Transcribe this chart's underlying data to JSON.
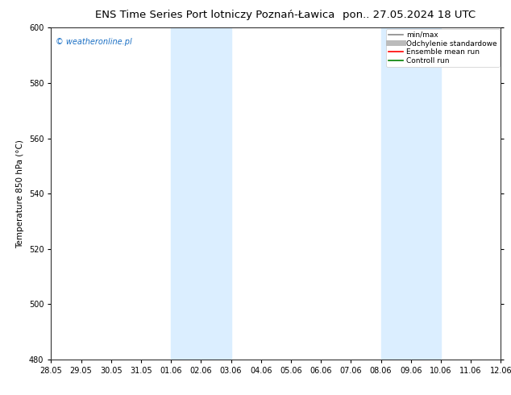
{
  "title_left": "ENS Time Series Port lotniczy Poznań-Ławica",
  "title_right": "pon.. 27.05.2024 18 UTC",
  "ylabel": "Temperature 850 hPa (°C)",
  "ylim": [
    480,
    600
  ],
  "yticks": [
    480,
    500,
    520,
    540,
    560,
    580,
    600
  ],
  "xtick_labels": [
    "28.05",
    "29.05",
    "30.05",
    "31.05",
    "01.06",
    "02.06",
    "03.06",
    "04.06",
    "05.06",
    "06.06",
    "07.06",
    "08.06",
    "09.06",
    "10.06",
    "11.06",
    "12.06"
  ],
  "watermark": "© weatheronline.pl",
  "watermark_color": "#1a6fc4",
  "bg_color": "#ffffff",
  "plot_bg_color": "#ffffff",
  "shade_bands": [
    {
      "xstart": 4,
      "xend": 6
    },
    {
      "xstart": 11,
      "xend": 13
    }
  ],
  "shade_color": "#dbeeff",
  "legend_items": [
    {
      "label": "min/max",
      "color": "#888888",
      "lw": 1.2,
      "style": "solid"
    },
    {
      "label": "Odchylenie standardowe",
      "color": "#bbbbbb",
      "lw": 5,
      "style": "solid"
    },
    {
      "label": "Ensemble mean run",
      "color": "#ff0000",
      "lw": 1.2,
      "style": "solid"
    },
    {
      "label": "Controll run",
      "color": "#008000",
      "lw": 1.2,
      "style": "solid"
    }
  ],
  "title_fontsize": 9.5,
  "tick_fontsize": 7,
  "ylabel_fontsize": 7.5,
  "watermark_fontsize": 7,
  "legend_fontsize": 6.5
}
